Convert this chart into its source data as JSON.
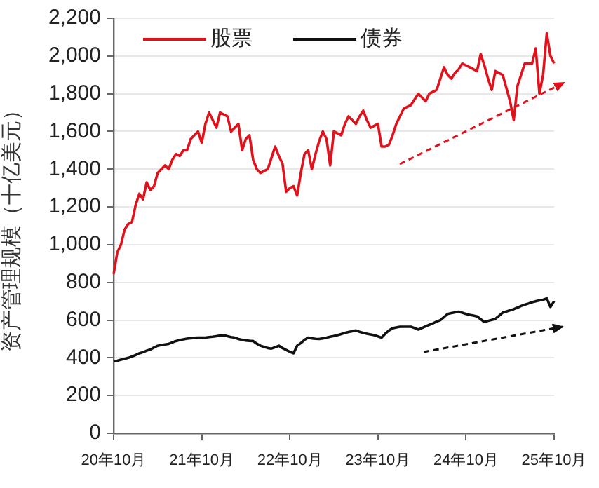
{
  "chart_data": {
    "type": "line",
    "ylabel": "资产管理规模（十亿美元）",
    "categories": [
      "20年10月",
      null,
      null,
      null,
      null,
      null,
      null,
      null,
      null,
      null,
      null,
      null,
      null,
      null,
      null,
      null,
      null,
      null,
      null,
      null,
      null,
      null,
      null,
      null,
      "21年10月",
      null,
      null,
      null,
      null,
      null,
      null,
      null,
      null,
      null,
      null,
      null,
      null,
      null,
      null,
      null,
      null,
      null,
      null,
      null,
      null,
      null,
      null,
      null,
      "22年10月",
      null,
      null,
      null,
      null,
      null,
      null,
      null,
      null,
      null,
      null,
      null,
      null,
      null,
      null,
      null,
      null,
      null,
      null,
      null,
      null,
      null,
      null,
      null,
      "23年10月",
      null,
      null,
      null,
      null,
      null,
      null,
      null,
      null,
      null,
      null,
      null,
      null,
      null,
      null,
      null,
      null,
      null,
      null,
      null,
      null,
      null,
      null,
      null,
      "24年10月",
      null,
      null,
      null,
      null,
      null,
      null,
      null,
      null,
      null,
      null,
      null,
      null,
      null,
      null,
      null,
      null,
      null,
      null,
      null,
      null,
      null,
      null,
      null,
      "25年10月"
    ],
    "ylim": [
      0,
      2200
    ],
    "yticks": [
      0,
      200,
      400,
      600,
      800,
      {
        "value": 1000,
        "label": "1,000"
      },
      {
        "value": 1200,
        "label": "1,200"
      },
      {
        "value": 1400,
        "label": "1,400"
      },
      {
        "value": 1600,
        "label": "1,600"
      },
      {
        "value": 1800,
        "label": "1,800"
      },
      {
        "value": 2000,
        "label": "2,000"
      },
      {
        "value": 2200,
        "label": "2,200"
      }
    ],
    "grid": "y",
    "legend": "top left",
    "marker": "none",
    "line_style": "solid",
    "series": [
      {
        "name": "股票",
        "color": "#e0121c",
        "values": [
          844,
          960,
          1000,
          1080,
          1110,
          1120,
          1210,
          1270,
          1240,
          1330,
          1290,
          1310,
          1380,
          1400,
          1420,
          1400,
          1450,
          1480,
          1470,
          1500,
          1500,
          1560,
          1580,
          1600,
          1540,
          1640,
          1700,
          1660,
          1620,
          1700,
          1690,
          1680,
          1600,
          1620,
          1640,
          1500,
          1560,
          1580,
          1450,
          1400,
          1380,
          1390,
          1400,
          1460,
          1520,
          1470,
          1430,
          1280,
          1300,
          1310,
          1260,
          1380,
          1480,
          1500,
          1400,
          1480,
          1550,
          1600,
          1560,
          1420,
          1600,
          1590,
          1580,
          1640,
          1680,
          1660,
          1640,
          1680,
          1710,
          1660,
          1620,
          1630,
          1640,
          1520,
          1520,
          1530,
          1580,
          1640,
          1680,
          1720,
          1730,
          1740,
          1770,
          1800,
          1780,
          1760,
          1800,
          1810,
          1820,
          1880,
          1940,
          1900,
          1880,
          1910,
          1930,
          1960,
          1950,
          1940,
          1930,
          1920,
          2010,
          1950,
          1880,
          1820,
          1920,
          1910,
          1900,
          1830,
          1760,
          1660,
          1840,
          1900,
          1960,
          1960,
          1960,
          2040,
          1800,
          1900,
          2120,
          2000,
          1960
        ]
      },
      {
        "name": "债券",
        "color": "#111111",
        "values": [
          381,
          385,
          390,
          395,
          400,
          407,
          415,
          424,
          430,
          438,
          444,
          455,
          464,
          468,
          471,
          474,
          482,
          489,
          494,
          498,
          502,
          504,
          506,
          507,
          507,
          507,
          510,
          512,
          515,
          518,
          520,
          515,
          510,
          507,
          500,
          495,
          492,
          490,
          489,
          475,
          464,
          458,
          452,
          449,
          456,
          464,
          452,
          442,
          432,
          424,
          464,
          478,
          495,
          507,
          503,
          501,
          500,
          503,
          507,
          512,
          516,
          520,
          526,
          532,
          537,
          541,
          545,
          538,
          532,
          528,
          524,
          520,
          514,
          507,
          528,
          545,
          557,
          561,
          565,
          565,
          565,
          565,
          558,
          550,
          558,
          567,
          575,
          583,
          592,
          600,
          616,
          633,
          637,
          641,
          645,
          639,
          633,
          628,
          624,
          620,
          605,
          590,
          596,
          601,
          607,
          623,
          640,
          646,
          652,
          658,
          666,
          675,
          682,
          688,
          695,
          700,
          704,
          708,
          715,
          670,
          700
        ]
      }
    ]
  }
}
